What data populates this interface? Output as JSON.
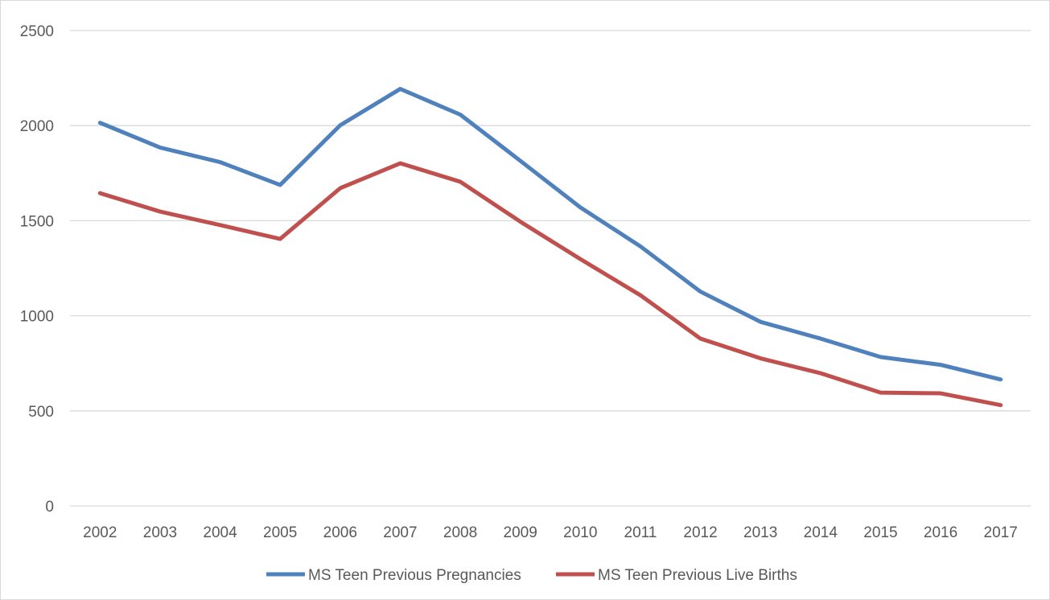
{
  "chart_data": {
    "type": "line",
    "title": "",
    "xlabel": "",
    "ylabel": "",
    "categories": [
      "2002",
      "2003",
      "2004",
      "2005",
      "2006",
      "2007",
      "2008",
      "2009",
      "2010",
      "2011",
      "2012",
      "2013",
      "2014",
      "2015",
      "2016",
      "2017"
    ],
    "ylim": [
      0,
      2500
    ],
    "yticks": [
      0,
      500,
      1000,
      1500,
      2000,
      2500
    ],
    "grid": true,
    "legend_position": "bottom",
    "series": [
      {
        "name": "MS Teen Previous Pregnancies",
        "color": "#4f81bd",
        "values": [
          2015,
          1885,
          1808,
          1688,
          2002,
          2193,
          2058,
          1815,
          1570,
          1365,
          1127,
          968,
          880,
          783,
          742,
          665
        ]
      },
      {
        "name": "MS Teen Previous Live Births",
        "color": "#c0504d",
        "values": [
          1645,
          1548,
          1477,
          1404,
          1671,
          1802,
          1705,
          1495,
          1298,
          1108,
          880,
          776,
          698,
          596,
          592,
          530
        ]
      }
    ]
  }
}
